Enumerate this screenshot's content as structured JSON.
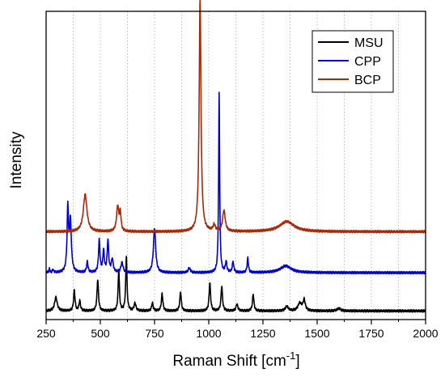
{
  "chart_data": {
    "type": "line",
    "title": "",
    "xlabel": "Raman Shift [cm",
    "xlabel_sup": "-1",
    "xlabel_end": "]",
    "ylabel": "Intensity",
    "xlim": [
      250,
      2000
    ],
    "ylim": [
      0,
      100
    ],
    "x_ticks": [
      250,
      500,
      750,
      1000,
      1250,
      1500,
      1750,
      2000
    ],
    "x_tick_labels": [
      "250",
      "500",
      "750",
      "1000",
      "1250",
      "1500",
      "1750",
      "2000"
    ],
    "y_ticks_shown": false,
    "grid": "vertical dotted",
    "legend_position": "top-right",
    "series": [
      {
        "name": "MSU",
        "color": "#000000",
        "baseline": 2.8,
        "peaks": [
          [
            295,
            4.5,
            7
          ],
          [
            380,
            6.6,
            4
          ],
          [
            405,
            3.3,
            4
          ],
          [
            488,
            10.2,
            4
          ],
          [
            585,
            13.4,
            3.5
          ],
          [
            620,
            17.8,
            3.5
          ],
          [
            660,
            2.5,
            5
          ],
          [
            740,
            2.6,
            4
          ],
          [
            785,
            5.6,
            4
          ],
          [
            870,
            6.2,
            4
          ],
          [
            1005,
            9.2,
            4
          ],
          [
            1060,
            8.1,
            4
          ],
          [
            1130,
            2.2,
            5
          ],
          [
            1205,
            5.4,
            4
          ],
          [
            1360,
            1.5,
            8
          ],
          [
            1420,
            2.5,
            10
          ],
          [
            1440,
            3.5,
            6
          ],
          [
            1600,
            0.8,
            10
          ]
        ]
      },
      {
        "name": "CPP",
        "color": "#0000cc",
        "baseline": 15.2,
        "peaks": [
          [
            265,
            1.1,
            3
          ],
          [
            282,
            1.0,
            3
          ],
          [
            350,
            20.5,
            4
          ],
          [
            362,
            16.5,
            5
          ],
          [
            440,
            3.4,
            4
          ],
          [
            495,
            10.3,
            4
          ],
          [
            515,
            7.0,
            4
          ],
          [
            535,
            10.3,
            4
          ],
          [
            555,
            4.3,
            5
          ],
          [
            600,
            3.2,
            6
          ],
          [
            750,
            14.6,
            6
          ],
          [
            910,
            1.5,
            6
          ],
          [
            1048,
            58.5,
            2.8
          ],
          [
            1080,
            3.4,
            4
          ],
          [
            1112,
            3.5,
            4
          ],
          [
            1180,
            4.7,
            3.5
          ],
          [
            1355,
            2.2,
            30
          ]
        ]
      },
      {
        "name": "BCP",
        "color": "#a52a0a",
        "baseline": 28.5,
        "peaks": [
          [
            430,
            12.1,
            10
          ],
          [
            580,
            8.2,
            6
          ],
          [
            592,
            5.8,
            4
          ],
          [
            960,
            75.8,
            5
          ],
          [
            1025,
            2.0,
            6
          ],
          [
            1070,
            6.8,
            7
          ],
          [
            1360,
            3.3,
            40
          ]
        ]
      }
    ]
  }
}
